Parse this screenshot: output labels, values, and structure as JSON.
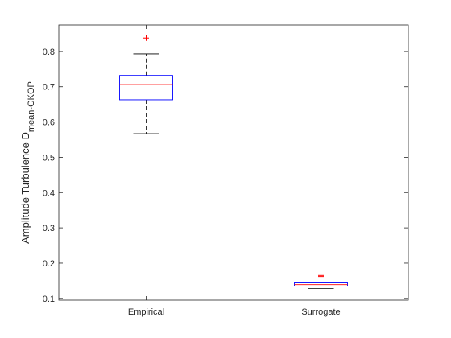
{
  "chart_data": {
    "type": "box",
    "categories": [
      "Empirical",
      "Surrogate"
    ],
    "ylabel": "Amplitude Turbulence D",
    "ylabel_subscript": "mean-GKOP",
    "ylim": [
      0.095,
      0.875
    ],
    "yticks": [
      "0.1",
      "0.2",
      "0.3",
      "0.4",
      "0.5",
      "0.6",
      "0.7",
      "0.8"
    ],
    "grid": false,
    "boxes": [
      {
        "name": "Empirical",
        "whisker_low": 0.567,
        "q1": 0.663,
        "median": 0.706,
        "q3": 0.732,
        "whisker_high": 0.793,
        "outliers": [
          0.838
        ]
      },
      {
        "name": "Surrogate",
        "whisker_low": 0.128,
        "q1": 0.135,
        "median": 0.139,
        "q3": 0.144,
        "whisker_high": 0.158,
        "outliers": [
          0.162,
          0.165
        ]
      }
    ],
    "colors": {
      "box": "#0000ff",
      "median": "#ff0000",
      "whisker": "#000000",
      "outlier": "#ff0000",
      "axis": "#262626"
    }
  }
}
